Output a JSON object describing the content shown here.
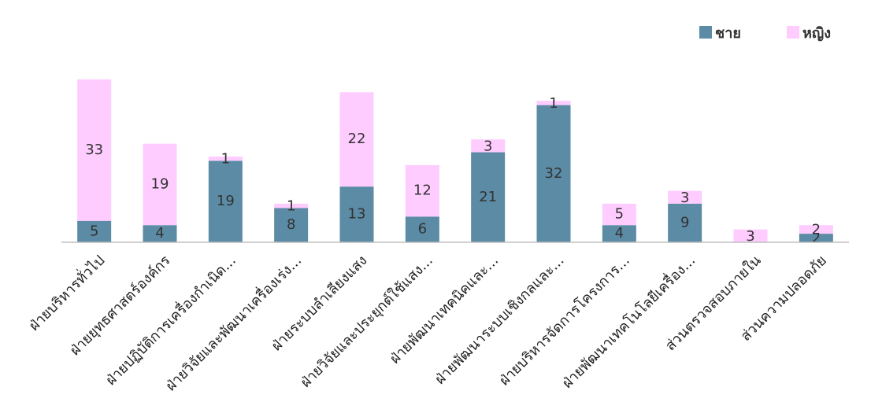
{
  "chart_data": {
    "type": "bar",
    "stacked": true,
    "categories": [
      "ฝ่ายบริหารทั่วไป",
      "ฝ่ายยุทธศาสตร์องค์กร",
      "ฝ่ายปฏิบัติการเครื่องกำเนิด...",
      "ฝ่ายวิจัยและพัฒนาเครื่องเร่ง...",
      "ฝ่ายระบบลำเลียงแสง",
      "ฝ่ายวิจัยและประยุกต์ใช้แสง...",
      "ฝ่ายพัฒนาเทคนิคและ...",
      "ฝ่ายพัฒนาระบบเชิงกลและ...",
      "ฝ่ายบริหารจัดการโครงการ...",
      "ฝ่ายพัฒนาเทคโนโลยีเครื่อง...",
      "ส่วนตรวจสอบภายใน",
      "ส่วนความปลอดภัย"
    ],
    "series": [
      {
        "name": "ชาย",
        "color": "#5b8ba5",
        "values": [
          5,
          4,
          19,
          8,
          13,
          6,
          21,
          32,
          4,
          9,
          0,
          2
        ]
      },
      {
        "name": "หญิง",
        "color": "#ffccff",
        "values": [
          33,
          19,
          1,
          1,
          22,
          12,
          3,
          1,
          5,
          3,
          3,
          2
        ]
      }
    ],
    "legend_position": "top-right",
    "grid": false,
    "ylim": [
      0,
      40
    ]
  }
}
